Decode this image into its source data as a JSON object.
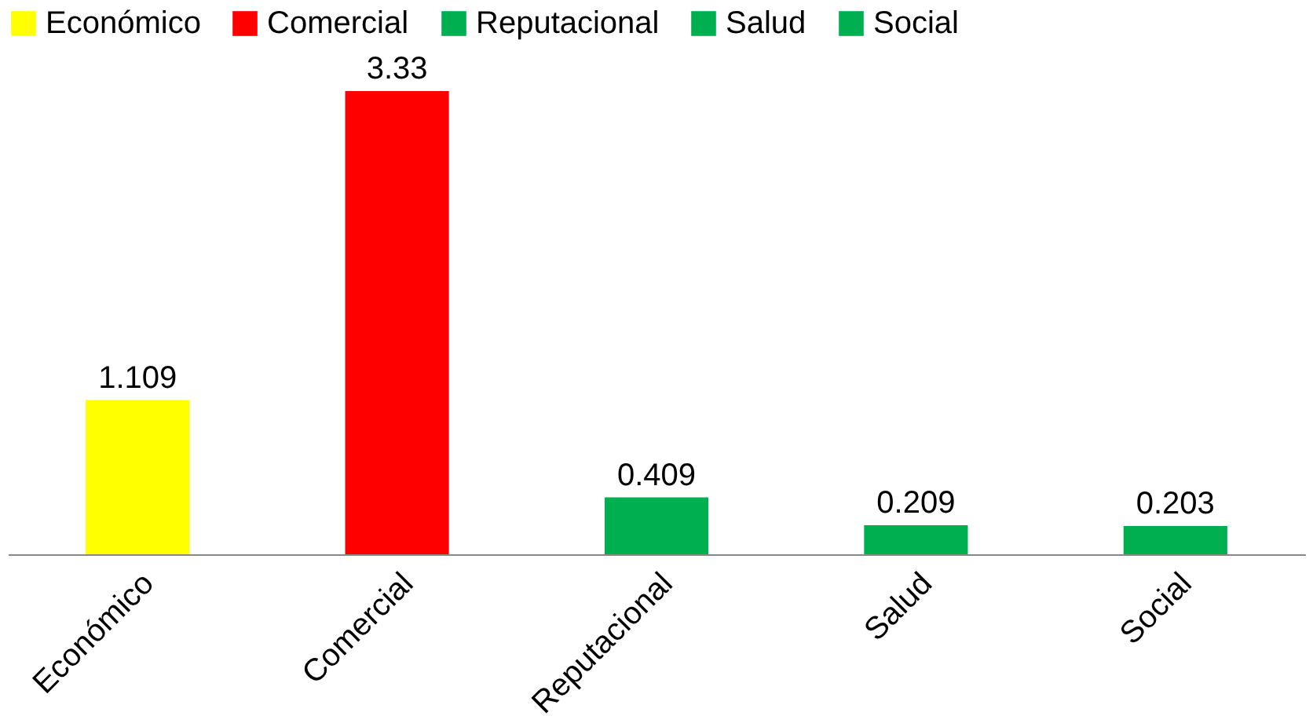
{
  "chart_data": {
    "type": "bar",
    "categories": [
      "Económico",
      "Comercial",
      "Reputacional",
      "Salud",
      "Social"
    ],
    "series": [
      {
        "name": "Económico",
        "color": "#ffff00",
        "values": [
          1.109,
          null,
          null,
          null,
          null
        ]
      },
      {
        "name": "Comercial",
        "color": "#ff0000",
        "values": [
          null,
          3.33,
          null,
          null,
          null
        ]
      },
      {
        "name": "Reputacional",
        "color": "#00b050",
        "values": [
          null,
          null,
          0.409,
          null,
          null
        ]
      },
      {
        "name": "Salud",
        "color": "#00b050",
        "values": [
          null,
          null,
          null,
          0.209,
          null
        ]
      },
      {
        "name": "Social",
        "color": "#00b050",
        "values": [
          null,
          null,
          null,
          null,
          0.203
        ]
      }
    ],
    "stacked": true,
    "data_labels": true,
    "legend": "top",
    "tick_labels": "x",
    "grid": false
  }
}
